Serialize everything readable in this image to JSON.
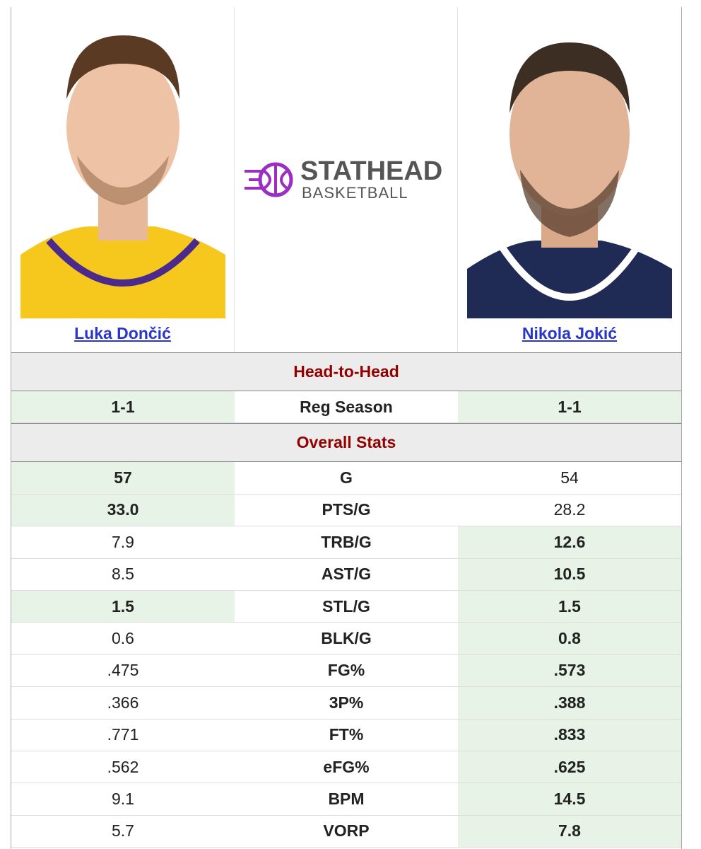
{
  "players": [
    {
      "name": "Luka Dončić"
    },
    {
      "name": "Nikola Jokić"
    }
  ],
  "logo": {
    "title": "STATHEAD",
    "subtitle": "BASKETBALL"
  },
  "sections": [
    {
      "title": "Head-to-Head",
      "rows": [
        {
          "left": "1-1",
          "label": "Reg Season",
          "right": "1-1",
          "left_leads": true,
          "right_leads": true
        }
      ]
    },
    {
      "title": "Overall Stats",
      "rows": [
        {
          "left": "57",
          "label": "G",
          "right": "54",
          "left_leads": true,
          "right_leads": false
        },
        {
          "left": "33.0",
          "label": "PTS/G",
          "right": "28.2",
          "left_leads": true,
          "right_leads": false
        },
        {
          "left": "7.9",
          "label": "TRB/G",
          "right": "12.6",
          "left_leads": false,
          "right_leads": true
        },
        {
          "left": "8.5",
          "label": "AST/G",
          "right": "10.5",
          "left_leads": false,
          "right_leads": true
        },
        {
          "left": "1.5",
          "label": "STL/G",
          "right": "1.5",
          "left_leads": true,
          "right_leads": true
        },
        {
          "left": "0.6",
          "label": "BLK/G",
          "right": "0.8",
          "left_leads": false,
          "right_leads": true
        },
        {
          "left": ".475",
          "label": "FG%",
          "right": ".573",
          "left_leads": false,
          "right_leads": true
        },
        {
          "left": ".366",
          "label": "3P%",
          "right": ".388",
          "left_leads": false,
          "right_leads": true
        },
        {
          "left": ".771",
          "label": "FT%",
          "right": ".833",
          "left_leads": false,
          "right_leads": true
        },
        {
          "left": ".562",
          "label": "eFG%",
          "right": ".625",
          "left_leads": false,
          "right_leads": true
        },
        {
          "left": "9.1",
          "label": "BPM",
          "right": "14.5",
          "left_leads": false,
          "right_leads": true
        },
        {
          "left": "5.7",
          "label": "VORP",
          "right": "7.8",
          "left_leads": false,
          "right_leads": true
        }
      ]
    }
  ]
}
